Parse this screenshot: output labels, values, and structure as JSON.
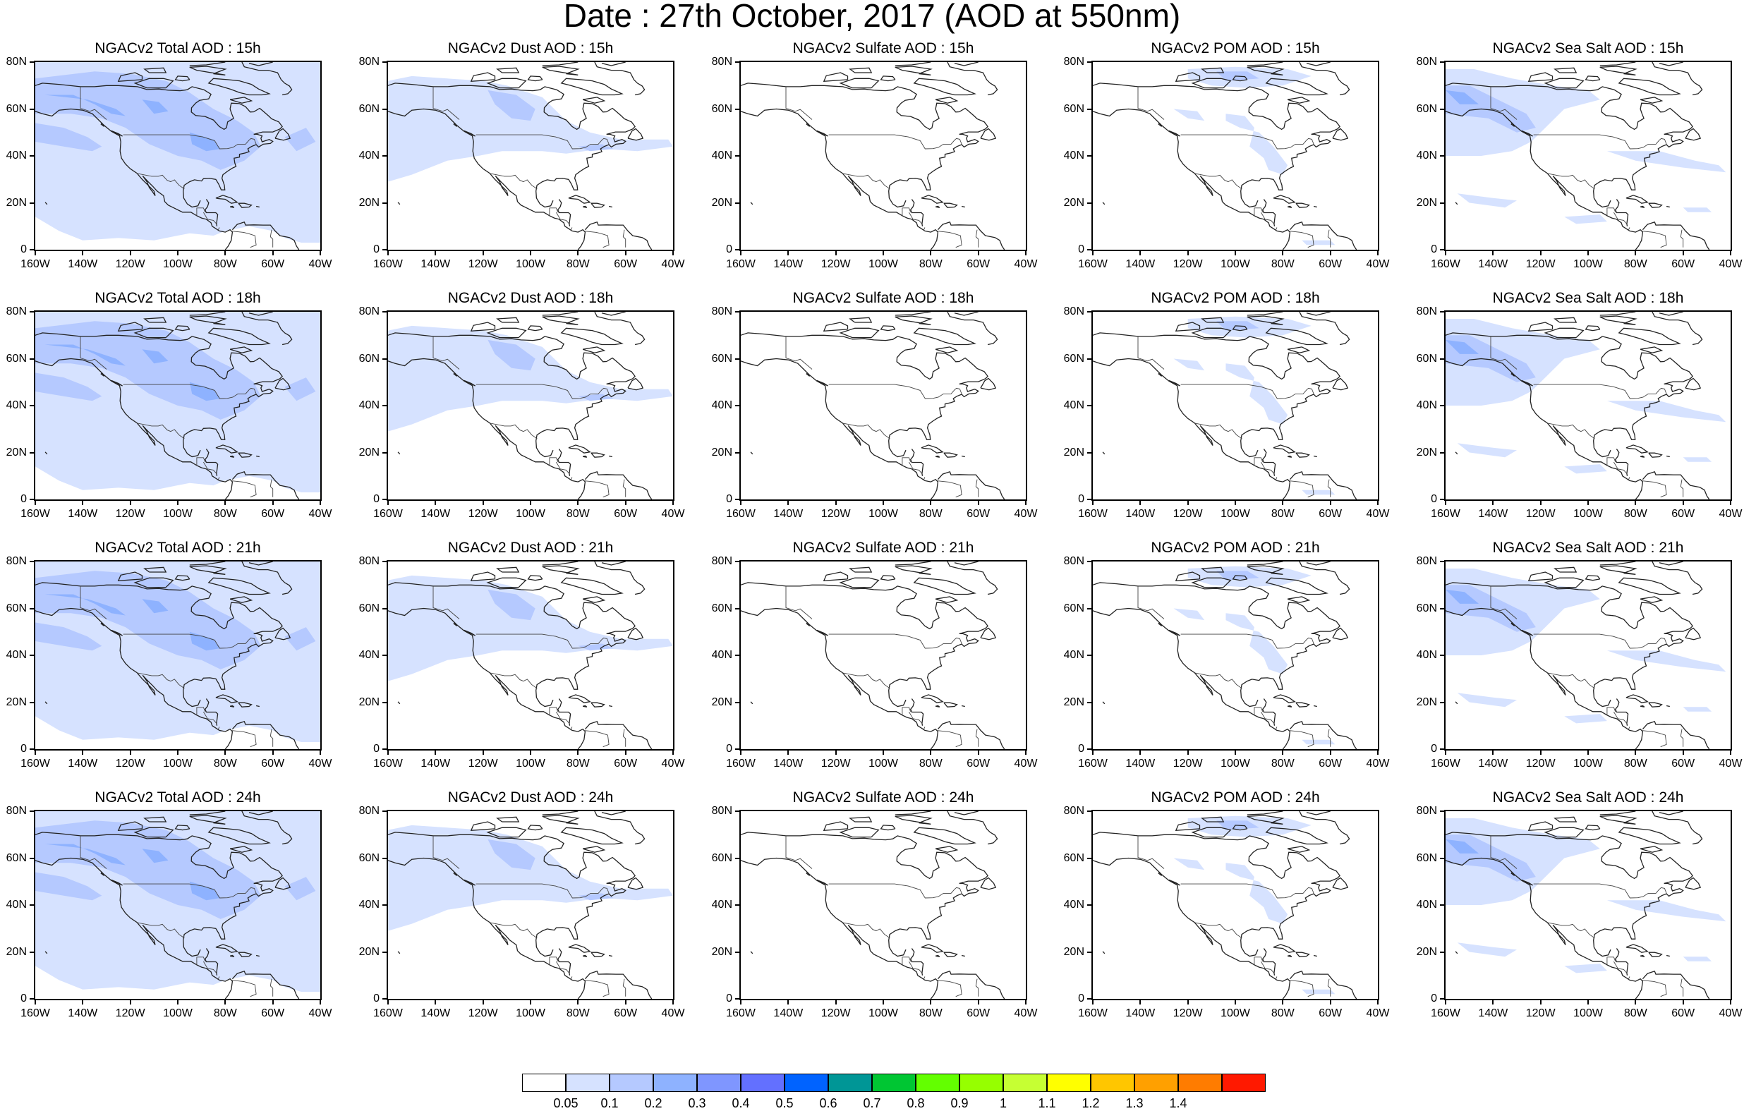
{
  "title": "Date : 27th October, 2017 (AOD at 550nm)",
  "rows": [
    [
      "NGACv2 Total AOD : 15h",
      "NGACv2 Dust AOD : 15h",
      "NGACv2 Sulfate AOD : 15h",
      "NGACv2 POM AOD : 15h",
      "NGACv2 Sea Salt AOD : 15h"
    ],
    [
      "NGACv2 Total AOD : 18h",
      "NGACv2 Dust AOD : 18h",
      "NGACv2 Sulfate AOD : 18h",
      "NGACv2 POM AOD : 18h",
      "NGACv2 Sea Salt AOD : 18h"
    ],
    [
      "NGACv2 Total AOD : 21h",
      "NGACv2 Dust AOD : 21h",
      "NGACv2 Sulfate AOD : 21h",
      "NGACv2 POM AOD : 21h",
      "NGACv2 Sea Salt AOD : 21h"
    ],
    [
      "NGACv2 Total AOD : 24h",
      "NGACv2 Dust AOD : 24h",
      "NGACv2 Sulfate AOD : 24h",
      "NGACv2 POM AOD : 24h",
      "NGACv2 Sea Salt  AOD : 24h"
    ]
  ],
  "lat_labels": [
    "80N",
    "60N",
    "40N",
    "20N",
    "0"
  ],
  "lon_labels": [
    "160W",
    "140W",
    "120W",
    "100W",
    "80W",
    "60W",
    "40W"
  ],
  "colorbar": {
    "colors": [
      "#ffffff",
      "#d6e2ff",
      "#b5c9ff",
      "#8eb2ff",
      "#7f96ff",
      "#6370ff",
      "#0063ff",
      "#009696",
      "#00c633",
      "#63ff00",
      "#96ff00",
      "#c6ff33",
      "#ffff00",
      "#ffc600",
      "#ffa000",
      "#ff7c00",
      "#ff1900"
    ],
    "labels": [
      "0.05",
      "0.1",
      "0.2",
      "0.3",
      "0.4",
      "0.5",
      "0.6",
      "0.7",
      "0.8",
      "0.9",
      "1",
      "1.1",
      "1.2",
      "1.3",
      "1.4"
    ]
  },
  "colors": {
    "light": "#d6e2ff",
    "medium": "#b5c9ff",
    "strong": "#8eb2ff"
  }
}
